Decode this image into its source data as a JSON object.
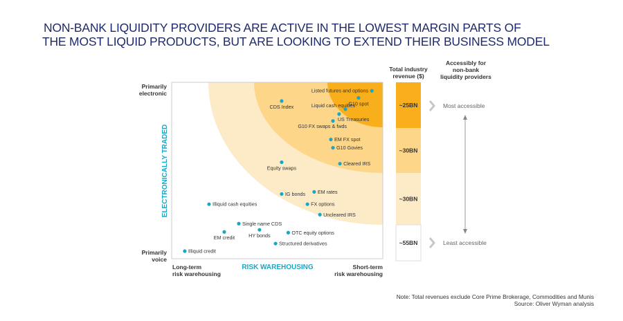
{
  "title": {
    "line1": "NON-BANK LIQUIDITY PROVIDERS ARE ACTIVE IN THE LOWEST MARGIN PARTS OF",
    "line2": "THE MOST LIQUID PRODUCTS, BUT ARE LOOKING TO EXTEND THEIR BUSINESS MODEL"
  },
  "chart_data": {
    "type": "scatter",
    "title": "NON-BANK LIQUIDITY PROVIDERS ARE ACTIVE IN THE LOWEST MARGIN PARTS OF THE MOST LIQUID PRODUCTS, BUT ARE LOOKING TO EXTEND THEIR BUSINESS MODEL",
    "xlabel": "RISK WAREHOUSING",
    "ylabel": "ELECTRONICALLY TRADED",
    "x_low_label": [
      "Long-term",
      "risk warehousing"
    ],
    "x_high_label": [
      "Short-term",
      "risk warehousing"
    ],
    "y_high_label": [
      "Primarily",
      "electronic"
    ],
    "y_low_label": [
      "Primarily",
      "voice"
    ],
    "xlim": [
      0,
      100
    ],
    "ylim": [
      0,
      100
    ],
    "grid": false,
    "dot_color": "#1aa7c7",
    "zones": [
      {
        "name": "outer",
        "color": "#fdebc8",
        "revenue": "~30BN"
      },
      {
        "name": "middle",
        "color": "#fdd68a",
        "revenue": "~30BN"
      },
      {
        "name": "inner",
        "color": "#f9ae1c",
        "revenue": "~25BN"
      }
    ],
    "points": [
      {
        "label": "Listed futures and options",
        "x": 94.8,
        "y": 95.2,
        "label_pos": "left"
      },
      {
        "label": "G10 spot",
        "x": 88.5,
        "y": 91.2,
        "label_pos": "below"
      },
      {
        "label": "CDS Index",
        "x": 52.1,
        "y": 89.4,
        "label_pos": "below"
      },
      {
        "label": "Liquid cash equities",
        "x": 82.3,
        "y": 84.8,
        "label_pos": "above-left"
      },
      {
        "label": "US Treasuries",
        "x": 79.3,
        "y": 82.0,
        "label_pos": "right-below"
      },
      {
        "label": "G10 FX swaps & fwds",
        "x": 76.4,
        "y": 78.1,
        "label_pos": "below-left"
      },
      {
        "label": "EM FX spot",
        "x": 75.4,
        "y": 67.6,
        "label_pos": "right"
      },
      {
        "label": "G10 Govies",
        "x": 76.4,
        "y": 62.9,
        "label_pos": "right"
      },
      {
        "label": "Equity swaps",
        "x": 52.1,
        "y": 54.7,
        "label_pos": "below"
      },
      {
        "label": "Cleared IRS",
        "x": 79.7,
        "y": 53.9,
        "label_pos": "right"
      },
      {
        "label": "EM rates",
        "x": 67.5,
        "y": 37.9,
        "label_pos": "right"
      },
      {
        "label": "IG bonds",
        "x": 52.1,
        "y": 36.7,
        "label_pos": "right"
      },
      {
        "label": "FX options",
        "x": 64.3,
        "y": 30.9,
        "label_pos": "right"
      },
      {
        "label": "Illiquid cash equities",
        "x": 17.7,
        "y": 30.9,
        "label_pos": "right"
      },
      {
        "label": "Uncleared IRS",
        "x": 70.2,
        "y": 25.0,
        "label_pos": "right"
      },
      {
        "label": "Single name CDS",
        "x": 31.8,
        "y": 19.9,
        "label_pos": "right"
      },
      {
        "label": "EM credit",
        "x": 24.9,
        "y": 15.2,
        "label_pos": "below"
      },
      {
        "label": "HY bonds",
        "x": 41.6,
        "y": 16.4,
        "label_pos": "below"
      },
      {
        "label": "OTC equity options",
        "x": 55.2,
        "y": 14.8,
        "label_pos": "right"
      },
      {
        "label": "Structured derivatives",
        "x": 49.2,
        "y": 8.6,
        "label_pos": "right"
      },
      {
        "label": "Illiquid credit",
        "x": 6.2,
        "y": 4.3,
        "label_pos": "right"
      }
    ]
  },
  "revenue_column": {
    "header": [
      "Total industry",
      "revenue ($)"
    ],
    "segments": [
      {
        "label": "~25BN",
        "color": "#f9ae1c"
      },
      {
        "label": "~30BN",
        "color": "#fdd68a"
      },
      {
        "label": "~30BN",
        "color": "#fdebc8"
      },
      {
        "label": "~55BN",
        "color": "#ffffff"
      }
    ]
  },
  "accessibility_column": {
    "header": [
      "Accessibly for",
      "non-bank",
      "liquidity providers"
    ],
    "most": "Most accessible",
    "least": "Least accessible"
  },
  "footer": {
    "note": "Note: Total revenues exclude Core Prime Brokerage, Commodities and Munis",
    "source": "Source: Oliver Wyman analysis"
  }
}
